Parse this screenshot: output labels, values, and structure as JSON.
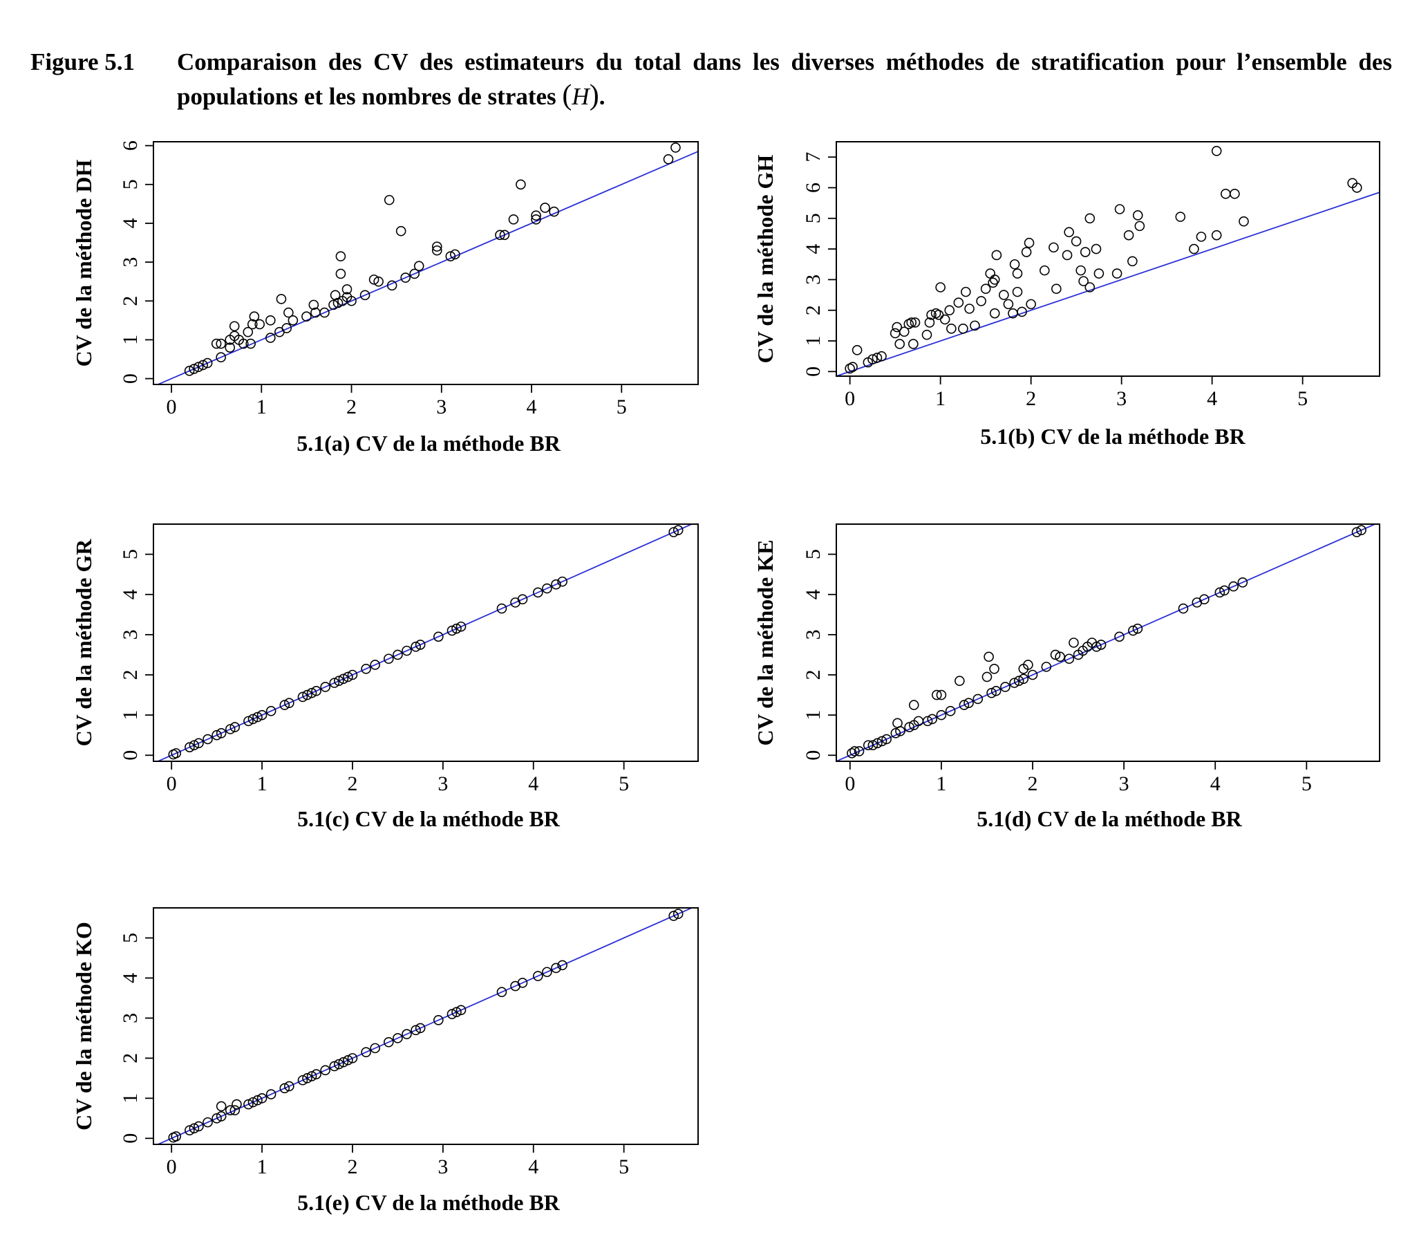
{
  "caption": {
    "number": "Figure 5.1",
    "text_before": "Comparaison des CV des estimateurs du total dans les diverses méthodes de stratification pour l’ensemble des populations et les nombres de strates",
    "h_symbol": "H",
    "text_after": "."
  },
  "line_color": "#2a2fd6",
  "point_color": "#000000",
  "chart_data": [
    {
      "id": "a",
      "type": "scatter",
      "xlabel": "5.1(a) CV de la méthode BR",
      "ylabel": "CV de la méthode DH",
      "xlim": [
        -0.2,
        5.85
      ],
      "ylim": [
        -0.15,
        6.1
      ],
      "xticks": [
        0,
        1,
        2,
        3,
        4,
        5
      ],
      "yticks": [
        0,
        1,
        2,
        3,
        4,
        5,
        6
      ],
      "reference_line": {
        "slope": 1,
        "intercept": 0
      },
      "points": [
        [
          0.2,
          0.2
        ],
        [
          0.25,
          0.25
        ],
        [
          0.3,
          0.3
        ],
        [
          0.35,
          0.35
        ],
        [
          0.4,
          0.4
        ],
        [
          0.55,
          0.55
        ],
        [
          0.5,
          0.9
        ],
        [
          0.55,
          0.9
        ],
        [
          0.65,
          0.8
        ],
        [
          0.65,
          1.0
        ],
        [
          0.7,
          1.1
        ],
        [
          0.7,
          1.35
        ],
        [
          0.75,
          1.0
        ],
        [
          0.8,
          0.9
        ],
        [
          0.85,
          1.2
        ],
        [
          0.88,
          0.9
        ],
        [
          0.9,
          1.4
        ],
        [
          0.92,
          1.6
        ],
        [
          0.98,
          1.4
        ],
        [
          1.1,
          1.05
        ],
        [
          1.1,
          1.5
        ],
        [
          1.2,
          1.2
        ],
        [
          1.22,
          2.05
        ],
        [
          1.28,
          1.3
        ],
        [
          1.3,
          1.7
        ],
        [
          1.35,
          1.5
        ],
        [
          1.5,
          1.6
        ],
        [
          1.58,
          1.9
        ],
        [
          1.6,
          1.7
        ],
        [
          1.7,
          1.7
        ],
        [
          1.8,
          1.9
        ],
        [
          1.82,
          2.15
        ],
        [
          1.85,
          1.95
        ],
        [
          1.88,
          3.15
        ],
        [
          1.88,
          2.7
        ],
        [
          1.9,
          2.0
        ],
        [
          1.95,
          2.1
        ],
        [
          1.95,
          2.3
        ],
        [
          2.0,
          2.0
        ],
        [
          2.15,
          2.15
        ],
        [
          2.25,
          2.55
        ],
        [
          2.3,
          2.5
        ],
        [
          2.42,
          4.6
        ],
        [
          2.45,
          2.4
        ],
        [
          2.55,
          3.8
        ],
        [
          2.6,
          2.6
        ],
        [
          2.7,
          2.7
        ],
        [
          2.75,
          2.9
        ],
        [
          2.95,
          3.3
        ],
        [
          2.95,
          3.4
        ],
        [
          3.1,
          3.15
        ],
        [
          3.15,
          3.2
        ],
        [
          3.65,
          3.7
        ],
        [
          3.7,
          3.7
        ],
        [
          3.8,
          4.1
        ],
        [
          3.88,
          5.0
        ],
        [
          4.05,
          4.1
        ],
        [
          4.05,
          4.2
        ],
        [
          4.15,
          4.4
        ],
        [
          4.25,
          4.3
        ],
        [
          5.52,
          5.65
        ],
        [
          5.6,
          5.95
        ]
      ]
    },
    {
      "id": "b",
      "type": "scatter",
      "xlabel": "5.1(b) CV de la méthode BR",
      "ylabel": "CV de la méthode GH",
      "xlim": [
        -0.15,
        5.85
      ],
      "ylim": [
        -0.15,
        7.5
      ],
      "xticks": [
        0,
        1,
        2,
        3,
        4,
        5
      ],
      "yticks": [
        0,
        1,
        2,
        3,
        4,
        5,
        6,
        7
      ],
      "reference_line": {
        "slope": 1,
        "intercept": 0
      },
      "points": [
        [
          0.0,
          0.1
        ],
        [
          0.03,
          0.15
        ],
        [
          0.08,
          0.7
        ],
        [
          0.2,
          0.3
        ],
        [
          0.25,
          0.4
        ],
        [
          0.3,
          0.45
        ],
        [
          0.35,
          0.5
        ],
        [
          0.5,
          1.25
        ],
        [
          0.52,
          1.45
        ],
        [
          0.55,
          0.9
        ],
        [
          0.6,
          1.3
        ],
        [
          0.65,
          1.55
        ],
        [
          0.68,
          1.6
        ],
        [
          0.7,
          0.9
        ],
        [
          0.72,
          1.6
        ],
        [
          0.85,
          1.2
        ],
        [
          0.88,
          1.6
        ],
        [
          0.9,
          1.85
        ],
        [
          0.95,
          1.9
        ],
        [
          0.98,
          1.85
        ],
        [
          1.0,
          2.75
        ],
        [
          1.05,
          1.7
        ],
        [
          1.1,
          2.0
        ],
        [
          1.12,
          1.4
        ],
        [
          1.2,
          2.25
        ],
        [
          1.25,
          1.4
        ],
        [
          1.28,
          2.6
        ],
        [
          1.32,
          2.05
        ],
        [
          1.38,
          1.5
        ],
        [
          1.45,
          2.3
        ],
        [
          1.5,
          2.7
        ],
        [
          1.55,
          3.2
        ],
        [
          1.58,
          2.9
        ],
        [
          1.6,
          3.0
        ],
        [
          1.6,
          1.9
        ],
        [
          1.62,
          3.8
        ],
        [
          1.7,
          2.5
        ],
        [
          1.75,
          2.2
        ],
        [
          1.8,
          1.9
        ],
        [
          1.82,
          3.5
        ],
        [
          1.85,
          3.2
        ],
        [
          1.85,
          2.6
        ],
        [
          1.9,
          1.95
        ],
        [
          1.95,
          3.9
        ],
        [
          1.98,
          4.2
        ],
        [
          2.0,
          2.2
        ],
        [
          2.15,
          3.3
        ],
        [
          2.25,
          4.05
        ],
        [
          2.28,
          2.7
        ],
        [
          2.4,
          3.8
        ],
        [
          2.42,
          4.55
        ],
        [
          2.5,
          4.25
        ],
        [
          2.55,
          3.3
        ],
        [
          2.58,
          2.95
        ],
        [
          2.6,
          3.9
        ],
        [
          2.65,
          5.0
        ],
        [
          2.65,
          2.75
        ],
        [
          2.72,
          4.0
        ],
        [
          2.75,
          3.2
        ],
        [
          2.95,
          3.2
        ],
        [
          2.98,
          5.3
        ],
        [
          3.08,
          4.45
        ],
        [
          3.12,
          3.6
        ],
        [
          3.18,
          5.1
        ],
        [
          3.2,
          4.75
        ],
        [
          3.65,
          5.05
        ],
        [
          3.8,
          4.0
        ],
        [
          3.88,
          4.4
        ],
        [
          4.05,
          4.45
        ],
        [
          4.05,
          7.2
        ],
        [
          4.15,
          5.8
        ],
        [
          4.25,
          5.8
        ],
        [
          4.35,
          4.9
        ],
        [
          5.55,
          6.15
        ],
        [
          5.6,
          6.0
        ]
      ]
    },
    {
      "id": "c",
      "type": "scatter",
      "xlabel": "5.1(c) CV de la méthode BR",
      "ylabel": "CV de la méthode GR",
      "xlim": [
        -0.2,
        5.82
      ],
      "ylim": [
        -0.15,
        5.75
      ],
      "xticks": [
        0,
        1,
        2,
        3,
        4,
        5
      ],
      "yticks": [
        0,
        1,
        2,
        3,
        4,
        5
      ],
      "reference_line": {
        "slope": 1,
        "intercept": 0
      },
      "points": [
        [
          0.02,
          0.02
        ],
        [
          0.05,
          0.05
        ],
        [
          0.2,
          0.2
        ],
        [
          0.25,
          0.25
        ],
        [
          0.3,
          0.3
        ],
        [
          0.4,
          0.4
        ],
        [
          0.5,
          0.5
        ],
        [
          0.55,
          0.55
        ],
        [
          0.65,
          0.65
        ],
        [
          0.7,
          0.7
        ],
        [
          0.85,
          0.85
        ],
        [
          0.9,
          0.9
        ],
        [
          0.95,
          0.95
        ],
        [
          1.0,
          1.0
        ],
        [
          1.1,
          1.1
        ],
        [
          1.25,
          1.25
        ],
        [
          1.3,
          1.3
        ],
        [
          1.45,
          1.45
        ],
        [
          1.5,
          1.5
        ],
        [
          1.55,
          1.55
        ],
        [
          1.6,
          1.6
        ],
        [
          1.7,
          1.7
        ],
        [
          1.8,
          1.8
        ],
        [
          1.85,
          1.85
        ],
        [
          1.9,
          1.9
        ],
        [
          1.95,
          1.95
        ],
        [
          2.0,
          2.0
        ],
        [
          2.15,
          2.15
        ],
        [
          2.25,
          2.25
        ],
        [
          2.4,
          2.4
        ],
        [
          2.5,
          2.5
        ],
        [
          2.6,
          2.6
        ],
        [
          2.7,
          2.7
        ],
        [
          2.75,
          2.75
        ],
        [
          2.95,
          2.95
        ],
        [
          3.1,
          3.1
        ],
        [
          3.15,
          3.15
        ],
        [
          3.2,
          3.2
        ],
        [
          3.65,
          3.65
        ],
        [
          3.8,
          3.8
        ],
        [
          3.88,
          3.88
        ],
        [
          4.05,
          4.05
        ],
        [
          4.15,
          4.15
        ],
        [
          4.25,
          4.25
        ],
        [
          4.32,
          4.32
        ],
        [
          5.55,
          5.55
        ],
        [
          5.6,
          5.6
        ]
      ]
    },
    {
      "id": "d",
      "type": "scatter",
      "xlabel": "5.1(d) CV de  la méthode BR",
      "ylabel": "CV de la méthode KE",
      "xlim": [
        -0.15,
        5.8
      ],
      "ylim": [
        -0.15,
        5.75
      ],
      "xticks": [
        0,
        1,
        2,
        3,
        4,
        5
      ],
      "yticks": [
        0,
        1,
        2,
        3,
        4,
        5
      ],
      "reference_line": {
        "slope": 1,
        "intercept": 0
      },
      "points": [
        [
          0.02,
          0.05
        ],
        [
          0.05,
          0.1
        ],
        [
          0.1,
          0.1
        ],
        [
          0.2,
          0.25
        ],
        [
          0.25,
          0.25
        ],
        [
          0.3,
          0.3
        ],
        [
          0.35,
          0.35
        ],
        [
          0.4,
          0.4
        ],
        [
          0.5,
          0.55
        ],
        [
          0.52,
          0.8
        ],
        [
          0.55,
          0.6
        ],
        [
          0.65,
          0.7
        ],
        [
          0.7,
          0.75
        ],
        [
          0.7,
          1.25
        ],
        [
          0.75,
          0.85
        ],
        [
          0.85,
          0.85
        ],
        [
          0.9,
          0.9
        ],
        [
          0.95,
          1.5
        ],
        [
          1.0,
          1.5
        ],
        [
          1.0,
          1.0
        ],
        [
          1.1,
          1.1
        ],
        [
          1.2,
          1.85
        ],
        [
          1.25,
          1.25
        ],
        [
          1.3,
          1.3
        ],
        [
          1.4,
          1.4
        ],
        [
          1.5,
          1.95
        ],
        [
          1.52,
          2.45
        ],
        [
          1.55,
          1.55
        ],
        [
          1.58,
          2.15
        ],
        [
          1.6,
          1.6
        ],
        [
          1.7,
          1.7
        ],
        [
          1.8,
          1.8
        ],
        [
          1.85,
          1.85
        ],
        [
          1.9,
          2.15
        ],
        [
          1.9,
          1.9
        ],
        [
          1.95,
          2.25
        ],
        [
          2.0,
          2.0
        ],
        [
          2.15,
          2.2
        ],
        [
          2.25,
          2.5
        ],
        [
          2.3,
          2.45
        ],
        [
          2.4,
          2.4
        ],
        [
          2.45,
          2.8
        ],
        [
          2.5,
          2.5
        ],
        [
          2.55,
          2.6
        ],
        [
          2.6,
          2.7
        ],
        [
          2.65,
          2.8
        ],
        [
          2.7,
          2.7
        ],
        [
          2.75,
          2.75
        ],
        [
          2.95,
          2.95
        ],
        [
          3.1,
          3.1
        ],
        [
          3.15,
          3.15
        ],
        [
          3.65,
          3.65
        ],
        [
          3.8,
          3.8
        ],
        [
          3.88,
          3.88
        ],
        [
          4.05,
          4.05
        ],
        [
          4.1,
          4.1
        ],
        [
          4.2,
          4.2
        ],
        [
          4.3,
          4.3
        ],
        [
          5.55,
          5.55
        ],
        [
          5.6,
          5.6
        ]
      ]
    },
    {
      "id": "e",
      "type": "scatter",
      "xlabel": "5.1(e) CV de la méthode BR",
      "ylabel": "CV de la méthode KO",
      "xlim": [
        -0.2,
        5.82
      ],
      "ylim": [
        -0.15,
        5.75
      ],
      "xticks": [
        0,
        1,
        2,
        3,
        4,
        5
      ],
      "yticks": [
        0,
        1,
        2,
        3,
        4,
        5
      ],
      "reference_line": {
        "slope": 1,
        "intercept": 0
      },
      "points": [
        [
          0.02,
          0.02
        ],
        [
          0.05,
          0.05
        ],
        [
          0.2,
          0.2
        ],
        [
          0.25,
          0.25
        ],
        [
          0.3,
          0.3
        ],
        [
          0.4,
          0.4
        ],
        [
          0.5,
          0.5
        ],
        [
          0.55,
          0.55
        ],
        [
          0.55,
          0.8
        ],
        [
          0.65,
          0.7
        ],
        [
          0.7,
          0.7
        ],
        [
          0.72,
          0.85
        ],
        [
          0.85,
          0.85
        ],
        [
          0.9,
          0.9
        ],
        [
          0.95,
          0.95
        ],
        [
          1.0,
          1.0
        ],
        [
          1.1,
          1.1
        ],
        [
          1.25,
          1.25
        ],
        [
          1.3,
          1.3
        ],
        [
          1.45,
          1.45
        ],
        [
          1.5,
          1.5
        ],
        [
          1.55,
          1.55
        ],
        [
          1.6,
          1.6
        ],
        [
          1.7,
          1.7
        ],
        [
          1.8,
          1.8
        ],
        [
          1.85,
          1.85
        ],
        [
          1.9,
          1.9
        ],
        [
          1.95,
          1.95
        ],
        [
          2.0,
          2.0
        ],
        [
          2.15,
          2.15
        ],
        [
          2.25,
          2.25
        ],
        [
          2.4,
          2.4
        ],
        [
          2.5,
          2.5
        ],
        [
          2.6,
          2.6
        ],
        [
          2.7,
          2.7
        ],
        [
          2.75,
          2.75
        ],
        [
          2.95,
          2.95
        ],
        [
          3.1,
          3.1
        ],
        [
          3.15,
          3.15
        ],
        [
          3.2,
          3.2
        ],
        [
          3.65,
          3.65
        ],
        [
          3.8,
          3.8
        ],
        [
          3.88,
          3.88
        ],
        [
          4.05,
          4.05
        ],
        [
          4.15,
          4.15
        ],
        [
          4.25,
          4.25
        ],
        [
          4.32,
          4.32
        ],
        [
          5.55,
          5.55
        ],
        [
          5.6,
          5.6
        ]
      ]
    }
  ]
}
